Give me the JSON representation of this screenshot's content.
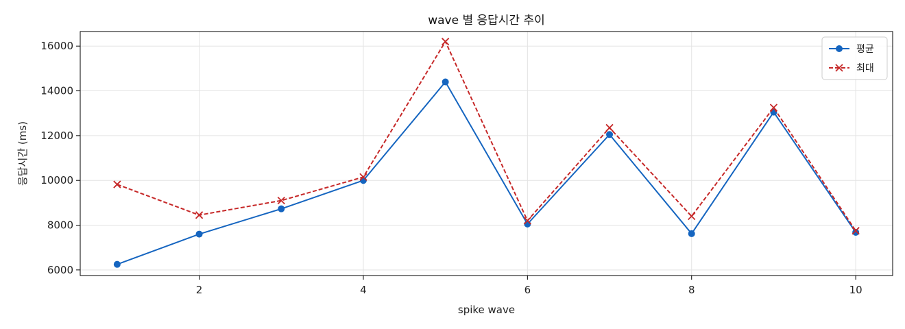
{
  "chart_data": {
    "type": "line",
    "title": "wave 별 응답시간 추이",
    "xlabel": "spike wave",
    "ylabel": "응답시간 (ms)",
    "x": [
      1,
      2,
      3,
      4,
      5,
      6,
      7,
      8,
      9,
      10
    ],
    "xlim": [
      0.55,
      10.45
    ],
    "ylim": [
      5750,
      16650
    ],
    "xticks": [
      2,
      4,
      6,
      8,
      10
    ],
    "yticks": [
      6000,
      8000,
      10000,
      12000,
      14000,
      16000
    ],
    "grid": true,
    "legend_position": "top-right",
    "series": [
      {
        "name": "평균",
        "values": [
          6250,
          7600,
          8730,
          10000,
          14400,
          8050,
          12050,
          7620,
          13050,
          7680
        ],
        "color": "#1565c0",
        "marker": "circle",
        "line_style": "solid"
      },
      {
        "name": "최대",
        "values": [
          9820,
          8450,
          9100,
          10150,
          16200,
          8200,
          12350,
          8400,
          13250,
          7750
        ],
        "color": "#c62828",
        "marker": "x",
        "line_style": "dashed"
      }
    ]
  }
}
